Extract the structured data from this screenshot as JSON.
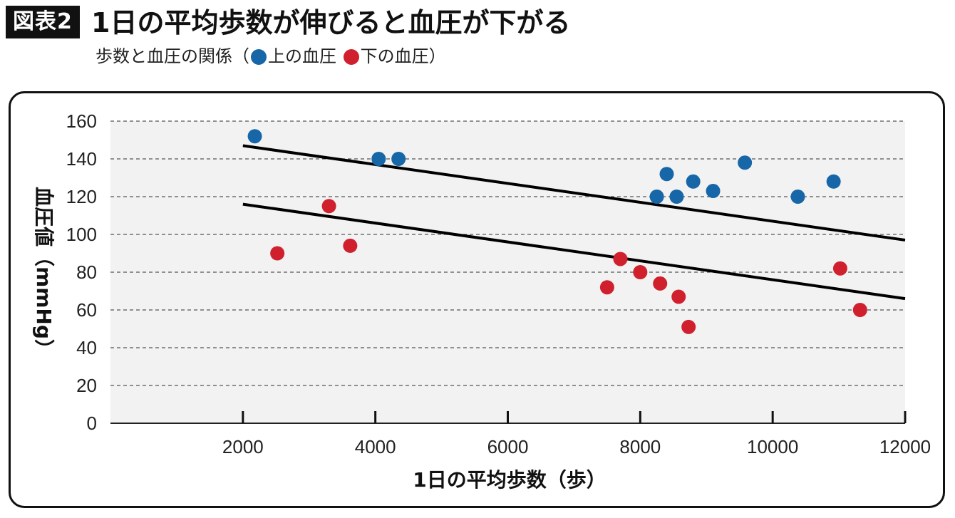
{
  "header": {
    "badge": "図表2",
    "title": "1日の平均歩数が伸びると血圧が下がる",
    "subtitle_prefix": "歩数と血圧の関係（",
    "legend_upper": "上の血圧",
    "legend_lower": "下の血圧）"
  },
  "chart_data": {
    "type": "scatter",
    "xlabel": "1日の平均歩数（歩）",
    "ylabel": "血圧値（mmHg）",
    "xlim": [
      0,
      12000
    ],
    "ylim": [
      0,
      160
    ],
    "x_ticks": [
      2000,
      4000,
      6000,
      8000,
      10000,
      12000
    ],
    "y_ticks": [
      0,
      20,
      40,
      60,
      80,
      100,
      120,
      140,
      160
    ],
    "grid": "horizontal dashed",
    "background": "#f2f2f2",
    "series": [
      {
        "name": "上の血圧",
        "color": "#1666a8",
        "points": [
          [
            2180,
            152
          ],
          [
            4050,
            140
          ],
          [
            4350,
            140
          ],
          [
            8250,
            120
          ],
          [
            8400,
            132
          ],
          [
            8550,
            120
          ],
          [
            8800,
            128
          ],
          [
            9100,
            123
          ],
          [
            9580,
            138
          ],
          [
            10380,
            120
          ],
          [
            10920,
            128
          ]
        ],
        "trend": [
          [
            2000,
            147
          ],
          [
            12000,
            97
          ]
        ]
      },
      {
        "name": "下の血圧",
        "color": "#d0202e",
        "points": [
          [
            2520,
            90
          ],
          [
            3300,
            115
          ],
          [
            3620,
            94
          ],
          [
            7500,
            72
          ],
          [
            7700,
            87
          ],
          [
            8000,
            80
          ],
          [
            8300,
            74
          ],
          [
            8580,
            67
          ],
          [
            8730,
            51
          ],
          [
            11020,
            82
          ],
          [
            11320,
            60
          ]
        ],
        "trend": [
          [
            2000,
            116
          ],
          [
            12000,
            66
          ]
        ]
      }
    ]
  }
}
